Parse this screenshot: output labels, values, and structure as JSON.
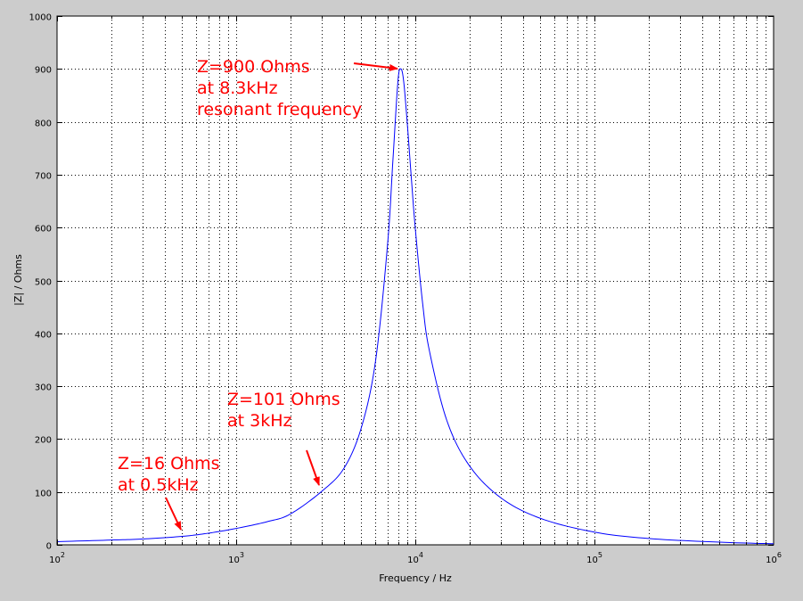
{
  "chart_data": {
    "type": "line",
    "title": "",
    "xlabel": "Frequency / Hz",
    "ylabel": "|Z| / Ohms",
    "x_scale": "log",
    "xlim": [
      100,
      1000000
    ],
    "ylim": [
      0,
      1000
    ],
    "grid": true,
    "y_ticks": [
      0,
      100,
      200,
      300,
      400,
      500,
      600,
      700,
      800,
      900,
      1000
    ],
    "x_ticks": [
      {
        "base": "10",
        "exp": "2"
      },
      {
        "base": "10",
        "exp": "3"
      },
      {
        "base": "10",
        "exp": "4"
      },
      {
        "base": "10",
        "exp": "5"
      },
      {
        "base": "10",
        "exp": "6"
      }
    ],
    "series": [
      {
        "color": "#0000ff",
        "x": [
          100,
          200,
          300,
          500,
          700,
          1000,
          1500,
          2000,
          3000,
          4000,
          5000,
          6000,
          7000,
          7500,
          8000,
          8300,
          8600,
          9000,
          9500,
          10000,
          11000,
          12000,
          15000,
          20000,
          30000,
          50000,
          100000,
          200000,
          500000,
          1000000
        ],
        "y": [
          6,
          9,
          11,
          16,
          22,
          31,
          44,
          58,
          101,
          145,
          222,
          348,
          568,
          728,
          877,
          900,
          878,
          801,
          694,
          598,
          455,
          366,
          235,
          150,
          89,
          50,
          24,
          12,
          5,
          2
        ]
      }
    ],
    "annotations": [
      {
        "lines": [
          "Z=900 Ohms",
          "at 8.3kHz",
          "resonant frequency"
        ],
        "target_x": 8300,
        "target_y": 900,
        "color": "#ff0000"
      },
      {
        "lines": [
          "Z=101 Ohms",
          "at 3kHz"
        ],
        "target_x": 3000,
        "target_y": 101,
        "color": "#ff0000"
      },
      {
        "lines": [
          "Z=16 Ohms",
          "at 0.5kHz"
        ],
        "target_x": 500,
        "target_y": 16,
        "color": "#ff0000"
      }
    ]
  }
}
